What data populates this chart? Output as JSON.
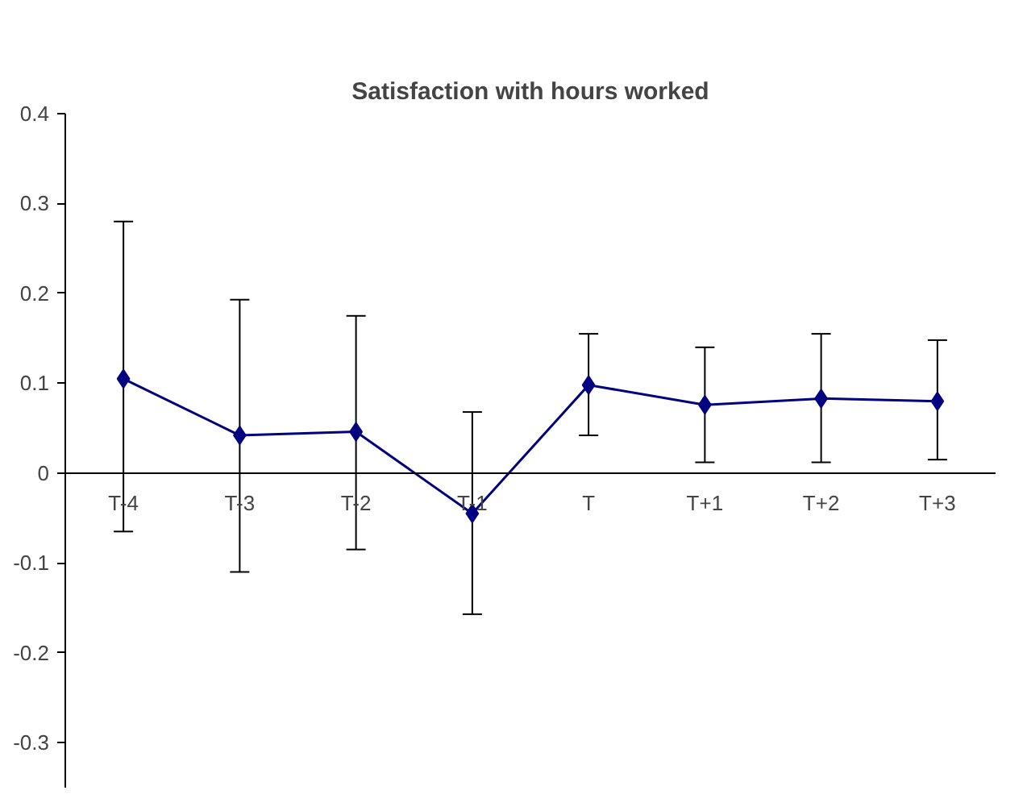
{
  "chart_data": {
    "type": "line",
    "title": "Satisfaction with hours worked",
    "categories": [
      "T-4",
      "T-3",
      "T-2",
      "T-1",
      "T",
      "T+1",
      "T+2",
      "T+3"
    ],
    "series": [
      {
        "color": "#000080",
        "values": [
          0.105,
          0.042,
          0.046,
          -0.045,
          0.098,
          0.076,
          0.083,
          0.08
        ],
        "errors": [
          [
            -0.065,
            0.28
          ],
          [
            -0.11,
            0.193
          ],
          [
            -0.085,
            0.175
          ],
          [
            -0.157,
            0.068
          ],
          [
            0.042,
            0.155
          ],
          [
            0.012,
            0.14
          ],
          [
            0.012,
            0.155
          ],
          [
            0.015,
            0.148
          ]
        ]
      }
    ],
    "ylim": [
      -0.35,
      0.4
    ],
    "yticks": [
      -0.3,
      -0.2,
      -0.1,
      0,
      0.1,
      0.2,
      0.3,
      0.4
    ],
    "marker": "diamond",
    "grid": false
  }
}
